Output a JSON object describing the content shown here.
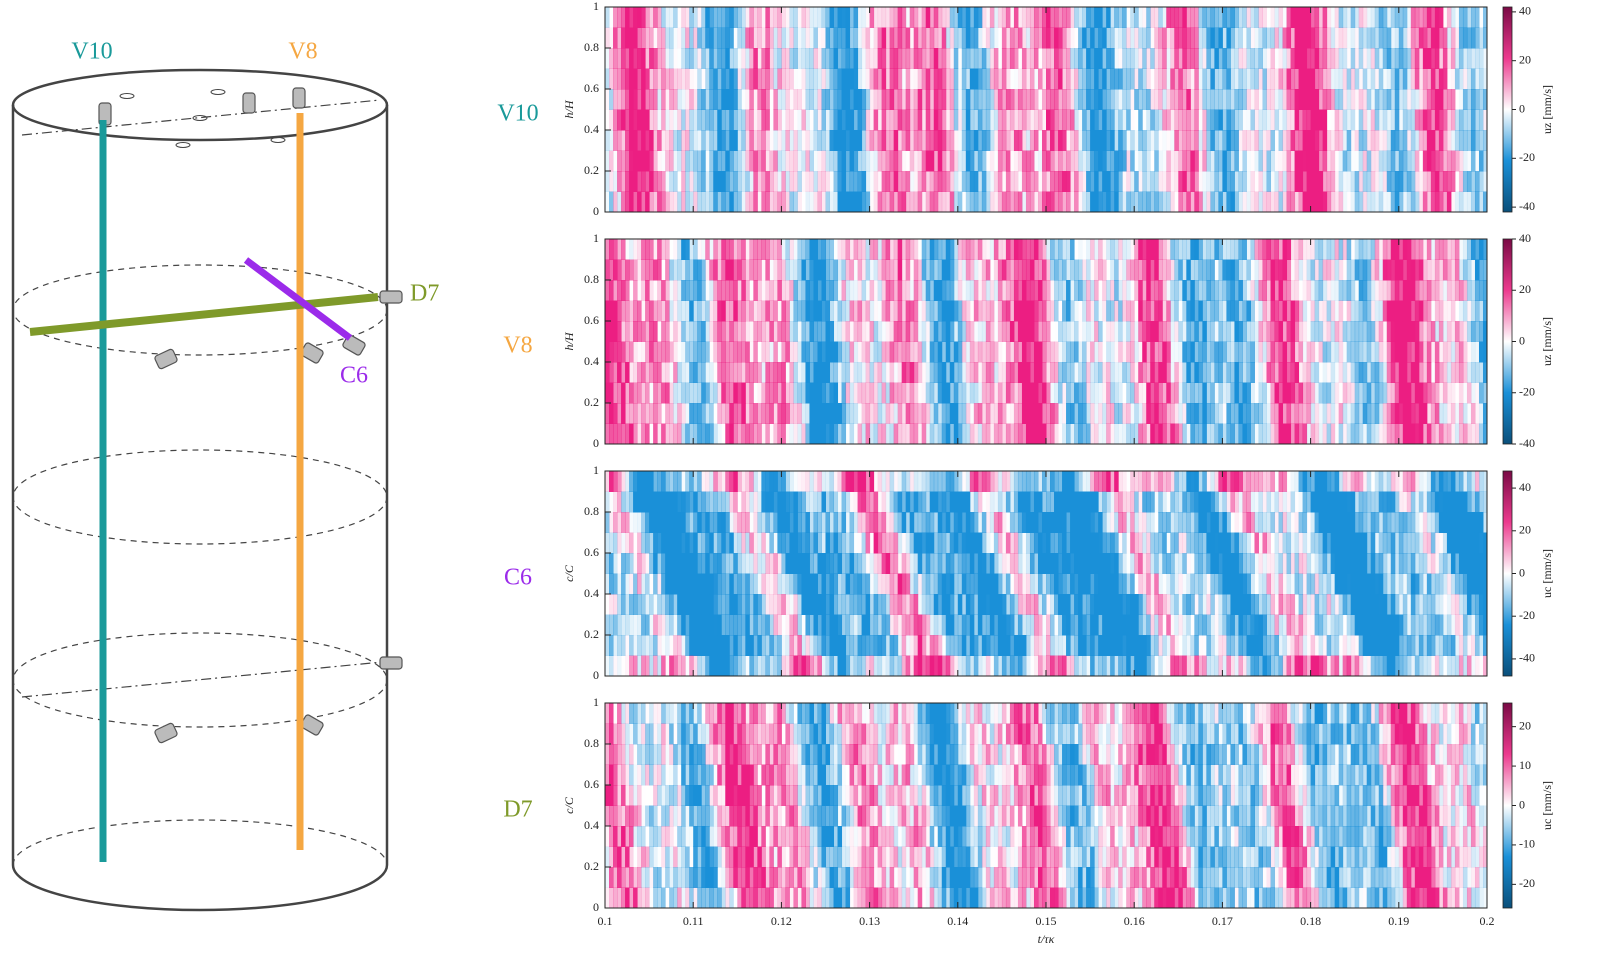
{
  "diagram": {
    "labels": {
      "v10": "V10",
      "v8": "V8",
      "d7": "D7",
      "c6": "C6"
    }
  },
  "chart_data": {
    "type": "heatmap",
    "xlabel": "t/τκ",
    "xlim": [
      0.1,
      0.2
    ],
    "xticks": [
      0.1,
      0.11,
      0.12,
      0.13,
      0.14,
      0.15,
      0.16,
      0.17,
      0.18,
      0.19,
      0.2
    ],
    "panels": [
      {
        "label": "V10",
        "label_color": "#1a9a9a",
        "ylabel": "h/H",
        "ylim": [
          0,
          1
        ],
        "yticks": [
          0,
          0.2,
          0.4,
          0.6,
          0.8,
          1
        ],
        "clabel": "uz [mm/s]",
        "clim": [
          -42,
          42
        ],
        "cticks": [
          -40,
          -20,
          0,
          20,
          40
        ]
      },
      {
        "label": "V8",
        "label_color": "#f5a742",
        "ylabel": "h/H",
        "ylim": [
          0,
          1
        ],
        "yticks": [
          0,
          0.2,
          0.4,
          0.6,
          0.8,
          1
        ],
        "clabel": "uz [mm/s]",
        "clim": [
          -40,
          40
        ],
        "cticks": [
          -40,
          -20,
          0,
          20,
          40
        ]
      },
      {
        "label": "C6",
        "label_color": "#9b2bea",
        "ylabel": "c/C",
        "ylim": [
          0,
          1
        ],
        "yticks": [
          0,
          0.2,
          0.4,
          0.6,
          0.8,
          1
        ],
        "clabel": "uc [mm/s]",
        "clim": [
          -48,
          48
        ],
        "cticks": [
          -40,
          -20,
          0,
          20,
          40
        ]
      },
      {
        "label": "D7",
        "label_color": "#7f9a2a",
        "ylabel": "c/C",
        "ylim": [
          0,
          1
        ],
        "yticks": [
          0,
          0.2,
          0.4,
          0.6,
          0.8,
          1
        ],
        "clabel": "uc [mm/s]",
        "clim": [
          -26,
          26
        ],
        "cticks": [
          -20,
          -10,
          0,
          10,
          20
        ]
      }
    ]
  }
}
